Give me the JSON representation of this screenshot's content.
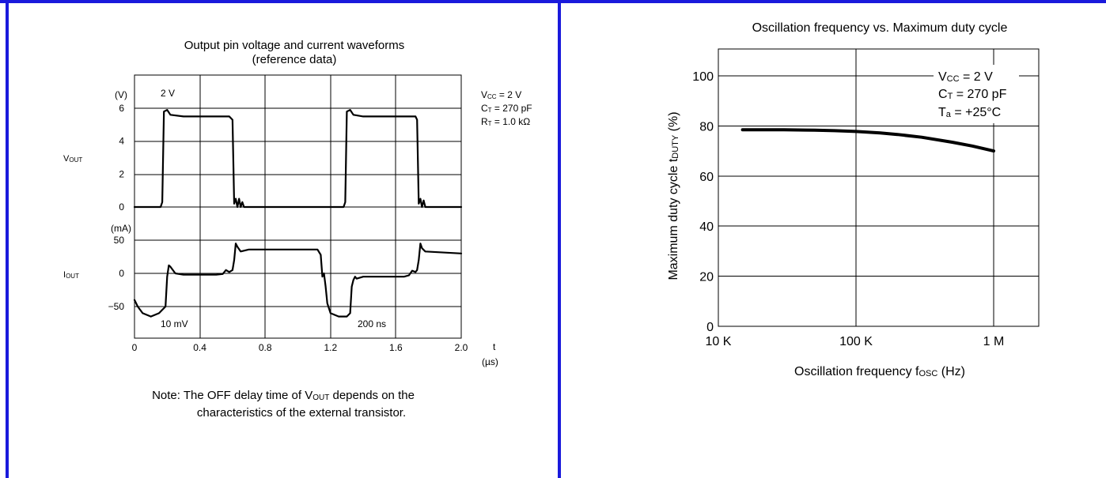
{
  "colors": {
    "border": "#1a1adc",
    "ink": "#000000",
    "background": "#ffffff"
  },
  "chart_data": [
    {
      "type": "line",
      "title": "Output pin voltage and current waveforms",
      "subtitle": "(reference data)",
      "xlabel": "t",
      "xunit": "(µs)",
      "xticks": [
        "0",
        "0.4",
        "0.8",
        "1.2",
        "1.6",
        "2.0"
      ],
      "xlim": [
        0,
        2.0
      ],
      "grid": true,
      "panels": [
        {
          "name": "V OUT",
          "unit": "(V)",
          "ylim": [
            0,
            8
          ],
          "yticks": [
            "0",
            "2",
            "4",
            "6"
          ],
          "scale_label": "2 V",
          "x": [
            0,
            0.16,
            0.17,
            0.18,
            0.2,
            0.22,
            0.3,
            0.58,
            0.6,
            0.61,
            0.62,
            0.63,
            0.64,
            0.65,
            0.66,
            0.67,
            0.7,
            1.28,
            1.29,
            1.3,
            1.32,
            1.34,
            1.4,
            1.72,
            1.73,
            1.74,
            1.75,
            1.76,
            1.77,
            1.78,
            1.8,
            2.0
          ],
          "y": [
            0,
            0,
            0.3,
            5.8,
            5.9,
            5.6,
            5.5,
            5.5,
            5.3,
            0.2,
            0.5,
            0,
            0.5,
            0,
            0.3,
            0,
            0,
            0,
            0.3,
            5.8,
            5.9,
            5.6,
            5.5,
            5.5,
            5.3,
            0.2,
            0.5,
            0,
            0.4,
            0,
            0,
            0
          ]
        },
        {
          "name": "I OUT",
          "unit": "(mA)",
          "ylim": [
            -100,
            50
          ],
          "yticks": [
            "-50",
            "0",
            "50"
          ],
          "scale_label": "10 mV",
          "time_scale_label": "200 ns",
          "x": [
            0,
            0.02,
            0.05,
            0.1,
            0.15,
            0.19,
            0.2,
            0.21,
            0.22,
            0.25,
            0.3,
            0.5,
            0.54,
            0.56,
            0.58,
            0.6,
            0.61,
            0.62,
            0.63,
            0.65,
            0.7,
            1.12,
            1.14,
            1.15,
            1.16,
            1.17,
            1.18,
            1.2,
            1.25,
            1.3,
            1.32,
            1.33,
            1.34,
            1.35,
            1.36,
            1.4,
            1.65,
            1.68,
            1.7,
            1.72,
            1.73,
            1.74,
            1.75,
            1.76,
            1.78,
            2.0
          ],
          "y": [
            -40,
            -50,
            -60,
            -65,
            -60,
            -50,
            -5,
            12,
            10,
            0,
            -2,
            -2,
            -1,
            5,
            2,
            5,
            20,
            45,
            40,
            33,
            36,
            36,
            28,
            -5,
            0,
            -20,
            -45,
            -60,
            -65,
            -65,
            -60,
            -20,
            -10,
            -5,
            -8,
            -5,
            -5,
            -3,
            4,
            2,
            5,
            20,
            45,
            38,
            33,
            30
          ]
        }
      ],
      "conditions": [
        "V CC = 2 V",
        "C T = 270 pF",
        "R T = 1.0 kΩ"
      ],
      "note": [
        "Note: The OFF delay time of V OUT depends on the",
        "characteristics of the external transistor."
      ]
    },
    {
      "type": "line",
      "title": "Oscillation frequency vs. Maximum duty cycle",
      "xlabel": "Oscillation frequency f OSC (Hz)",
      "ylabel": "Maximum duty cycle t DUTY (%)",
      "xscale": "log",
      "xlim": [
        10000,
        1000000
      ],
      "xticks": [
        "10 K",
        "100 K",
        "1 M"
      ],
      "ylim": [
        0,
        110
      ],
      "yticks": [
        "0",
        "20",
        "40",
        "60",
        "80",
        "100"
      ],
      "grid": true,
      "conditions": [
        "V CC = 2 V",
        "C T = 270 pF",
        "Ta = +25°C"
      ],
      "series": [
        {
          "x": [
            15000,
            20000,
            30000,
            50000,
            70000,
            100000,
            150000,
            200000,
            300000,
            500000,
            700000,
            1000000
          ],
          "y": [
            78.5,
            78.5,
            78.5,
            78.3,
            78.1,
            77.8,
            77.2,
            76.6,
            75.5,
            73.5,
            72,
            70
          ]
        }
      ]
    }
  ]
}
